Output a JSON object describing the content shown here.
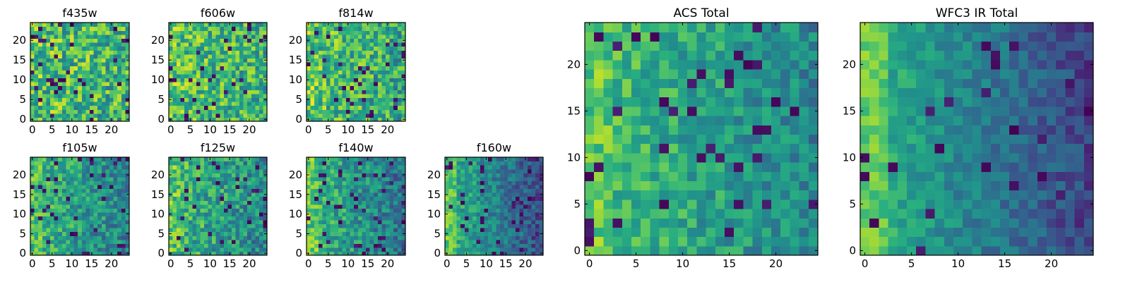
{
  "chart_data": [
    {
      "type": "heatmap",
      "title": "f435w",
      "xticks": [
        0,
        5,
        10,
        15,
        20
      ],
      "yticks": [
        0,
        5,
        10,
        15,
        20
      ],
      "xlim": [
        -0.5,
        24.5
      ],
      "ylim": [
        -0.5,
        24.5
      ],
      "grid": false,
      "colormap": "viridis"
    },
    {
      "type": "heatmap",
      "title": "f606w",
      "xticks": [
        0,
        5,
        10,
        15,
        20
      ],
      "yticks": [
        0,
        5,
        10,
        15,
        20
      ],
      "xlim": [
        -0.5,
        24.5
      ],
      "ylim": [
        -0.5,
        24.5
      ],
      "grid": false,
      "colormap": "viridis"
    },
    {
      "type": "heatmap",
      "title": "f814w",
      "xticks": [
        0,
        5,
        10,
        15,
        20
      ],
      "yticks": [
        0,
        5,
        10,
        15,
        20
      ],
      "xlim": [
        -0.5,
        24.5
      ],
      "ylim": [
        -0.5,
        24.5
      ],
      "grid": false,
      "colormap": "viridis"
    },
    {
      "type": "heatmap",
      "title": "f105w",
      "xticks": [
        0,
        5,
        10,
        15,
        20
      ],
      "yticks": [
        0,
        5,
        10,
        15,
        20
      ],
      "xlim": [
        -0.5,
        24.5
      ],
      "ylim": [
        -0.5,
        24.5
      ],
      "grid": false,
      "colormap": "viridis"
    },
    {
      "type": "heatmap",
      "title": "f125w",
      "xticks": [
        0,
        5,
        10,
        15,
        20
      ],
      "yticks": [
        0,
        5,
        10,
        15,
        20
      ],
      "xlim": [
        -0.5,
        24.5
      ],
      "ylim": [
        -0.5,
        24.5
      ],
      "grid": false,
      "colormap": "viridis"
    },
    {
      "type": "heatmap",
      "title": "f140w",
      "xticks": [
        0,
        5,
        10,
        15,
        20
      ],
      "yticks": [
        0,
        5,
        10,
        15,
        20
      ],
      "xlim": [
        -0.5,
        24.5
      ],
      "ylim": [
        -0.5,
        24.5
      ],
      "grid": false,
      "colormap": "viridis"
    },
    {
      "type": "heatmap",
      "title": "f160w",
      "xticks": [
        0,
        5,
        10,
        15,
        20
      ],
      "yticks": [
        0,
        5,
        10,
        15,
        20
      ],
      "xlim": [
        -0.5,
        24.5
      ],
      "ylim": [
        -0.5,
        24.5
      ],
      "grid": false,
      "colormap": "viridis"
    },
    {
      "type": "heatmap",
      "title": "ACS Total",
      "xticks": [
        0,
        5,
        10,
        15,
        20
      ],
      "yticks": [
        0,
        5,
        10,
        15,
        20
      ],
      "xlim": [
        -0.5,
        24.5
      ],
      "ylim": [
        -0.5,
        24.5
      ],
      "grid": false,
      "colormap": "viridis"
    },
    {
      "type": "heatmap",
      "title": "WFC3 IR Total",
      "xticks": [
        0,
        5,
        10,
        15,
        20
      ],
      "yticks": [
        0,
        5,
        10,
        15,
        20
      ],
      "xlim": [
        -0.5,
        24.5
      ],
      "ylim": [
        -0.5,
        24.5
      ],
      "grid": false,
      "colormap": "viridis"
    }
  ],
  "colors": {
    "viridis_stops": [
      "#440154",
      "#3b528b",
      "#21918c",
      "#5ec962",
      "#fde725"
    ],
    "frame": "#000000",
    "background": "#ffffff"
  }
}
